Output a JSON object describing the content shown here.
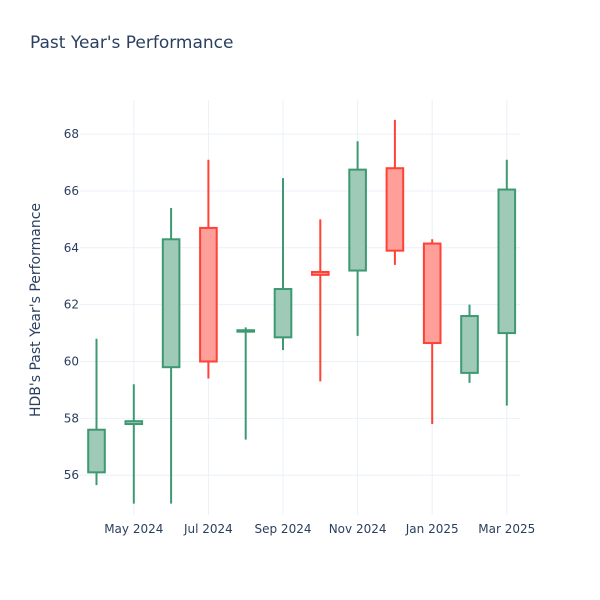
{
  "chart_data": {
    "type": "candlestick",
    "title": "Past Year's Performance",
    "ylabel": "HDB's Past Year's Performance",
    "xlabel": "",
    "ylim": [
      54.6,
      69.2
    ],
    "yticks": [
      56,
      58,
      60,
      62,
      64,
      66,
      68
    ],
    "ytick_labels": [
      "56",
      "58",
      "60",
      "62",
      "64",
      "66",
      "68"
    ],
    "xticks": [
      {
        "label": "May 2024",
        "index": 1
      },
      {
        "label": "Jul 2024",
        "index": 3
      },
      {
        "label": "Sep 2024",
        "index": 5
      },
      {
        "label": "Nov 2024",
        "index": 7
      },
      {
        "label": "Jan 2025",
        "index": 9
      },
      {
        "label": "Mar 2025",
        "index": 11
      }
    ],
    "increasing_color": "#3d9970",
    "increasing_fill": "#9ecab7",
    "decreasing_color": "#ff4136",
    "decreasing_fill": "#ff9f9a",
    "series": [
      {
        "period": "Apr 2024",
        "open": 56.1,
        "high": 60.8,
        "low": 55.65,
        "close": 57.6
      },
      {
        "period": "May 2024",
        "open": 57.8,
        "high": 59.2,
        "low": 55.0,
        "close": 57.9
      },
      {
        "period": "Jun 2024",
        "open": 59.8,
        "high": 65.4,
        "low": 55.0,
        "close": 64.3
      },
      {
        "period": "Jul 2024",
        "open": 64.7,
        "high": 67.1,
        "low": 59.4,
        "close": 60.0
      },
      {
        "period": "Aug 2024",
        "open": 61.05,
        "high": 61.2,
        "low": 57.25,
        "close": 61.1
      },
      {
        "period": "Sep 2024",
        "open": 60.85,
        "high": 66.45,
        "low": 60.4,
        "close": 62.55
      },
      {
        "period": "Oct 2024",
        "open": 63.15,
        "high": 65.0,
        "low": 59.3,
        "close": 63.05
      },
      {
        "period": "Nov 2024",
        "open": 63.2,
        "high": 67.75,
        "low": 60.9,
        "close": 66.75
      },
      {
        "period": "Dec 2024",
        "open": 66.8,
        "high": 68.5,
        "low": 63.4,
        "close": 63.9
      },
      {
        "period": "Jan 2025",
        "open": 64.15,
        "high": 64.3,
        "low": 57.8,
        "close": 60.65
      },
      {
        "period": "Feb 2025",
        "open": 59.6,
        "high": 62.0,
        "low": 59.25,
        "close": 61.6
      },
      {
        "period": "Mar 2025",
        "open": 61.0,
        "high": 67.1,
        "low": 58.45,
        "close": 66.05
      }
    ]
  }
}
